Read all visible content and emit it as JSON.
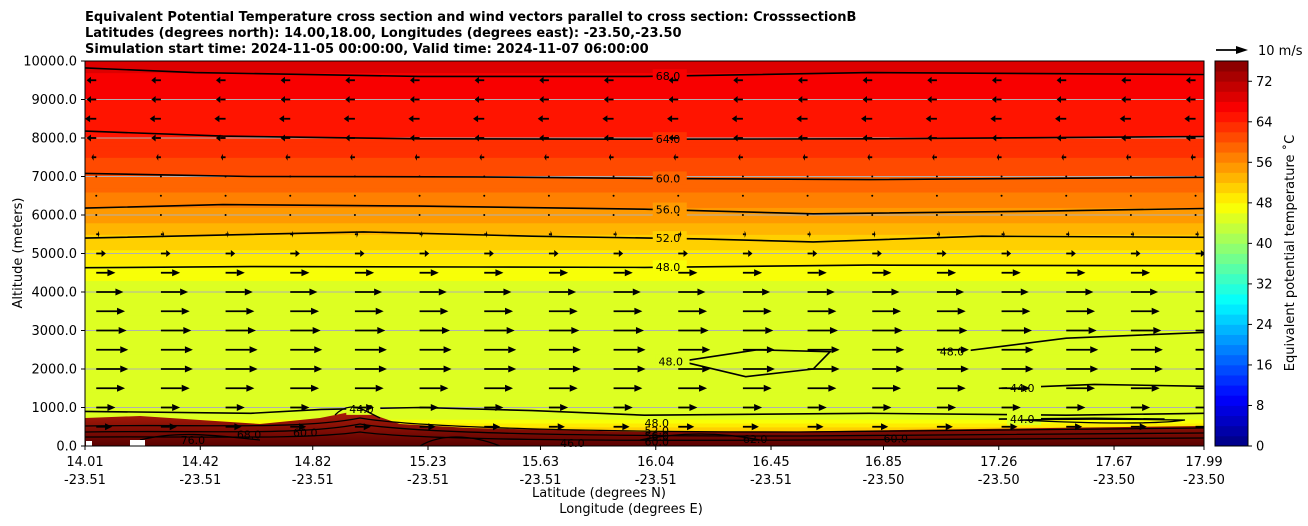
{
  "title_lines": [
    "Equivalent Potential Temperature cross section and wind vectors parallel to cross section: CrosssectionB",
    "Latitudes (degrees north): 14.00,18.00, Longitudes (degrees east): -23.50,-23.50",
    "Simulation start time: 2024-11-05 00:00:00, Valid time: 2024-11-07 06:00:00"
  ],
  "chart_data": {
    "type": "heatmap",
    "xlabel": "Latitude (degrees N)",
    "xlabel2": "Longitude (degrees E)",
    "ylabel": "Altitude (meters)",
    "xlim": [
      14.01,
      17.99
    ],
    "ylim": [
      0,
      10000
    ],
    "x_ticks": [
      {
        "lat": "14.01",
        "lon": "-23.51",
        "v": 14.01
      },
      {
        "lat": "14.42",
        "lon": "-23.51",
        "v": 14.42
      },
      {
        "lat": "14.82",
        "lon": "-23.51",
        "v": 14.82
      },
      {
        "lat": "15.23",
        "lon": "-23.51",
        "v": 15.23
      },
      {
        "lat": "15.63",
        "lon": "-23.51",
        "v": 15.63
      },
      {
        "lat": "16.04",
        "lon": "-23.51",
        "v": 16.04
      },
      {
        "lat": "16.45",
        "lon": "-23.51",
        "v": 16.45
      },
      {
        "lat": "16.85",
        "lon": "-23.50",
        "v": 16.85
      },
      {
        "lat": "17.26",
        "lon": "-23.50",
        "v": 17.26
      },
      {
        "lat": "17.67",
        "lon": "-23.50",
        "v": 17.67
      },
      {
        "lat": "17.99",
        "lon": "-23.50",
        "v": 17.99
      }
    ],
    "y_ticks": [
      "0.0",
      "1000.0",
      "2000.0",
      "3000.0",
      "4000.0",
      "5000.0",
      "6000.0",
      "7000.0",
      "8000.0",
      "9000.0",
      "10000.0"
    ],
    "grid": true,
    "colorbar": {
      "label": "Equivalent potential temperature ˚C",
      "range": [
        0,
        76
      ],
      "ticks": [
        "0",
        "8",
        "16",
        "24",
        "32",
        "40",
        "48",
        "56",
        "64",
        "72"
      ]
    },
    "quiver_key": {
      "label": "10 m/s",
      "value": 10
    },
    "theta_e_profile": [
      {
        "z": 0,
        "v": 74
      },
      {
        "z": 200,
        "v": 66
      },
      {
        "z": 400,
        "v": 52
      },
      {
        "z": 700,
        "v": 45
      },
      {
        "z": 1000,
        "v": 44
      },
      {
        "z": 2000,
        "v": 46
      },
      {
        "z": 3000,
        "v": 44
      },
      {
        "z": 4000,
        "v": 44
      },
      {
        "z": 4700,
        "v": 48
      },
      {
        "z": 5300,
        "v": 51
      },
      {
        "z": 6000,
        "v": 55
      },
      {
        "z": 7000,
        "v": 60
      },
      {
        "z": 8000,
        "v": 64
      },
      {
        "z": 9000,
        "v": 66
      },
      {
        "z": 10000,
        "v": 69
      }
    ],
    "contours": [
      {
        "value": 68.0,
        "label": "68.0",
        "label_x": 16.04,
        "points": [
          [
            14.01,
            9820
          ],
          [
            14.4,
            9700
          ],
          [
            15.2,
            9600
          ],
          [
            16.0,
            9600
          ],
          [
            16.8,
            9700
          ],
          [
            17.99,
            9650
          ]
        ]
      },
      {
        "value": 64.0,
        "label": "64.0",
        "label_x": 16.04,
        "points": [
          [
            14.01,
            8180
          ],
          [
            14.5,
            8050
          ],
          [
            15.2,
            7980
          ],
          [
            16.0,
            7970
          ],
          [
            16.8,
            7980
          ],
          [
            17.99,
            8040
          ]
        ]
      },
      {
        "value": 60.0,
        "label": "60.0",
        "label_x": 16.04,
        "points": [
          [
            14.01,
            7080
          ],
          [
            14.6,
            7000
          ],
          [
            15.4,
            6990
          ],
          [
            16.0,
            6950
          ],
          [
            16.8,
            6920
          ],
          [
            17.99,
            6980
          ]
        ]
      },
      {
        "value": 56.0,
        "label": "56.0",
        "label_x": 16.04,
        "points": [
          [
            14.01,
            6180
          ],
          [
            14.5,
            6270
          ],
          [
            15.2,
            6230
          ],
          [
            16.0,
            6150
          ],
          [
            16.6,
            6030
          ],
          [
            17.4,
            6100
          ],
          [
            17.99,
            6170
          ]
        ]
      },
      {
        "value": 52.0,
        "label": "52.0",
        "label_x": 16.04,
        "points": [
          [
            14.01,
            5400
          ],
          [
            15.0,
            5560
          ],
          [
            15.6,
            5450
          ],
          [
            16.2,
            5380
          ],
          [
            16.6,
            5300
          ],
          [
            17.2,
            5450
          ],
          [
            17.99,
            5420
          ]
        ]
      },
      {
        "value": 48.0,
        "label": "48.0",
        "label_x": 16.04,
        "points": [
          [
            14.01,
            4630
          ],
          [
            14.6,
            4660
          ],
          [
            15.4,
            4650
          ],
          [
            16.0,
            4640
          ],
          [
            16.8,
            4700
          ],
          [
            17.99,
            4680
          ]
        ]
      },
      {
        "value": 48.0,
        "label": "48.0",
        "label_x": 16.05,
        "points": [
          [
            16.13,
            2200
          ],
          [
            16.36,
            1800
          ],
          [
            16.6,
            2000
          ],
          [
            16.66,
            2450
          ],
          [
            16.4,
            2500
          ],
          [
            16.22,
            2300
          ],
          [
            16.13,
            2200
          ]
        ]
      },
      {
        "value": 48.0,
        "label": "48.0",
        "label_x": 17.05,
        "points": [
          [
            17.12,
            2450
          ],
          [
            17.5,
            2800
          ],
          [
            17.99,
            2950
          ]
        ]
      },
      {
        "value": 44.0,
        "label": "44.0",
        "label_x": 14.95,
        "points": [
          [
            14.01,
            900
          ],
          [
            14.6,
            850
          ],
          [
            14.85,
            950
          ],
          [
            15.2,
            1000
          ],
          [
            15.6,
            920
          ],
          [
            16.0,
            800
          ],
          [
            16.8,
            850
          ],
          [
            17.5,
            800
          ],
          [
            17.99,
            850
          ]
        ]
      },
      {
        "value": 44.0,
        "label": "44.0",
        "label_x": 17.3,
        "points": [
          [
            17.26,
            1500
          ],
          [
            17.6,
            1600
          ],
          [
            17.99,
            1550
          ]
        ]
      },
      {
        "value": 44.0,
        "label": "44.0",
        "label_x": 17.3,
        "points": [
          [
            17.26,
            700
          ],
          [
            17.6,
            720
          ],
          [
            17.85,
            700
          ]
        ]
      }
    ],
    "surface_labels": [
      {
        "text": "76.0",
        "x": 14.35,
        "z": 150
      },
      {
        "text": "68.0",
        "x": 14.55,
        "z": 300
      },
      {
        "text": "60.0",
        "x": 14.75,
        "z": 350
      },
      {
        "text": "46.0",
        "x": 15.7,
        "z": 80
      },
      {
        "text": "48.0",
        "x": 16.0,
        "z": 600
      },
      {
        "text": "52.0",
        "x": 16.0,
        "z": 400
      },
      {
        "text": "56.0",
        "x": 16.0,
        "z": 260
      },
      {
        "text": "60.0",
        "x": 16.0,
        "z": 120
      },
      {
        "text": "62.0",
        "x": 16.35,
        "z": 180
      },
      {
        "text": "60.0",
        "x": 16.85,
        "z": 200
      }
    ],
    "wind_profile": [
      {
        "z": 500,
        "u": 5
      },
      {
        "z": 1000,
        "u": 6
      },
      {
        "z": 1500,
        "u": 9
      },
      {
        "z": 2000,
        "u": 10
      },
      {
        "z": 2500,
        "u": 10
      },
      {
        "z": 3000,
        "u": 9.5
      },
      {
        "z": 3500,
        "u": 9
      },
      {
        "z": 4000,
        "u": 8.5
      },
      {
        "z": 4500,
        "u": 6
      },
      {
        "z": 5000,
        "u": 3
      },
      {
        "z": 5500,
        "u": 1
      },
      {
        "z": 6000,
        "u": 0.5
      },
      {
        "z": 6500,
        "u": 0.2
      },
      {
        "z": 7000,
        "u": -0.5
      },
      {
        "z": 7500,
        "u": -1.5
      },
      {
        "z": 8000,
        "u": -3
      },
      {
        "z": 8500,
        "u": -3.5
      },
      {
        "z": 9000,
        "u": -3
      },
      {
        "z": 9500,
        "u": -3
      }
    ],
    "wind_columns": [
      14.05,
      14.28,
      14.51,
      14.74,
      14.97,
      15.2,
      15.43,
      15.66,
      15.89,
      16.12,
      16.35,
      16.58,
      16.81,
      17.04,
      17.27,
      17.5,
      17.73,
      17.96
    ]
  }
}
